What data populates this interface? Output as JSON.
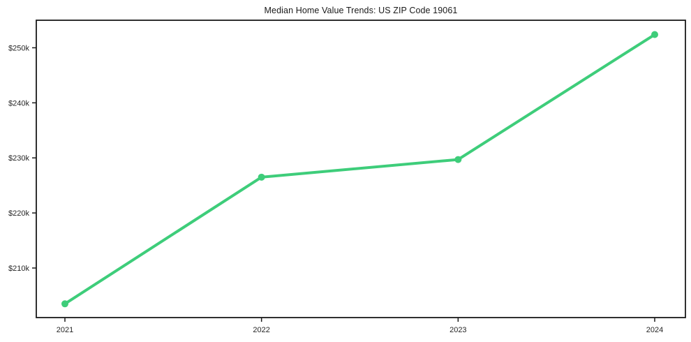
{
  "page": {
    "background_color": "#ffffff",
    "frame_color": "#1a1a1a",
    "text_color": "#262626"
  },
  "chart_data": {
    "type": "line",
    "title": "Median Home Value Trends: US ZIP Code 19061",
    "xlabel": "",
    "ylabel": "",
    "categories": [
      "2021",
      "2022",
      "2023",
      "2024"
    ],
    "series": [
      {
        "name": "Median Home Value",
        "values": [
          203500,
          226500,
          229700,
          252400
        ],
        "color": "#3ecd7a",
        "line_width": 4,
        "marker": "circle",
        "marker_radius": 5
      }
    ],
    "ylim": [
      201000,
      255000
    ],
    "y_ticks": [
      {
        "value": 210000,
        "label": "$210k"
      },
      {
        "value": 220000,
        "label": "$220k"
      },
      {
        "value": 230000,
        "label": "$230k"
      },
      {
        "value": 240000,
        "label": "$240k"
      },
      {
        "value": 250000,
        "label": "$250k"
      }
    ],
    "grid": false,
    "legend_position": "none"
  }
}
